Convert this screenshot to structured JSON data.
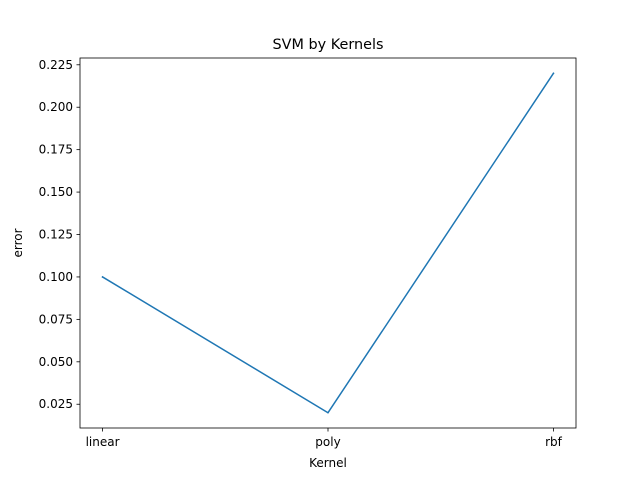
{
  "chart_data": {
    "type": "line",
    "title": "SVM by Kernels",
    "xlabel": "Kernel",
    "ylabel": "error",
    "categories": [
      "linear",
      "poly",
      "rbf"
    ],
    "series": [
      {
        "values": [
          0.1,
          0.02,
          0.22
        ],
        "color": "#1f77b4"
      }
    ],
    "ylim": [
      0.011,
      0.229
    ],
    "yticks": [
      0.025,
      0.05,
      0.075,
      0.1,
      0.125,
      0.15,
      0.175,
      0.2,
      0.225
    ],
    "ytick_labels": [
      "0.025",
      "0.050",
      "0.075",
      "0.100",
      "0.125",
      "0.150",
      "0.175",
      "0.200",
      "0.225"
    ],
    "grid": false,
    "legend": "none"
  }
}
